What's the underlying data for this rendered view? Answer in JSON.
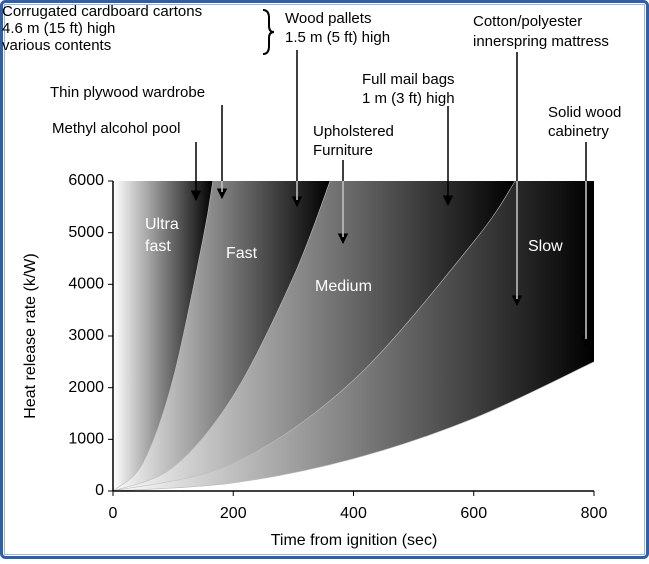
{
  "chart_data": {
    "type": "fire-growth",
    "x_label": "Time from ignition (sec)",
    "y_label": "Heat release rate (k/W)",
    "xlim": [
      0,
      800
    ],
    "xticks": [
      0,
      200,
      400,
      600,
      800
    ],
    "ylim": [
      0,
      6000
    ],
    "yticks": [
      0,
      1000,
      2000,
      3000,
      4000,
      5000,
      6000
    ],
    "gradient_colors": [
      "#ffffff",
      "#000000"
    ],
    "series": [
      {
        "x": [
          0,
          50,
          100,
          150,
          166
        ],
        "values": [
          0,
          544,
          2177,
          4899,
          6000
        ]
      },
      {
        "x": [
          0,
          100,
          200,
          300,
          361
        ],
        "values": [
          0,
          460,
          1842,
          4144,
          6000
        ]
      },
      {
        "x": [
          0,
          200,
          400,
          600,
          669
        ],
        "values": [
          0,
          536,
          2145,
          4826,
          6000
        ]
      },
      {
        "x": [
          0,
          200,
          400,
          600,
          800
        ],
        "values": [
          0,
          156,
          625,
          1406,
          2500
        ]
      }
    ],
    "region_labels": [
      [
        "Ultra",
        "fast"
      ],
      [
        "Fast"
      ],
      [
        "Medium"
      ],
      [
        "Slow"
      ]
    ],
    "annotations": [
      {
        "lines": [
          "Corrugated cardboard cartons",
          "4.6 m (15 ft) high",
          "various contents"
        ]
      },
      {
        "lines": [
          "Wood pallets",
          "1.5 m (5 ft) high"
        ]
      },
      {
        "lines": [
          "Cotton/polyester",
          "innerspring mattress"
        ]
      },
      {
        "lines": [
          "Thin plywood wardrobe"
        ]
      },
      {
        "lines": [
          "Full mail bags",
          "1 m (3 ft) high"
        ]
      },
      {
        "lines": [
          "Solid wood",
          "cabinetry"
        ]
      },
      {
        "lines": [
          "Methyl alcohol pool"
        ]
      },
      {
        "lines": [
          "Upholstered",
          "Furniture"
        ]
      }
    ]
  }
}
